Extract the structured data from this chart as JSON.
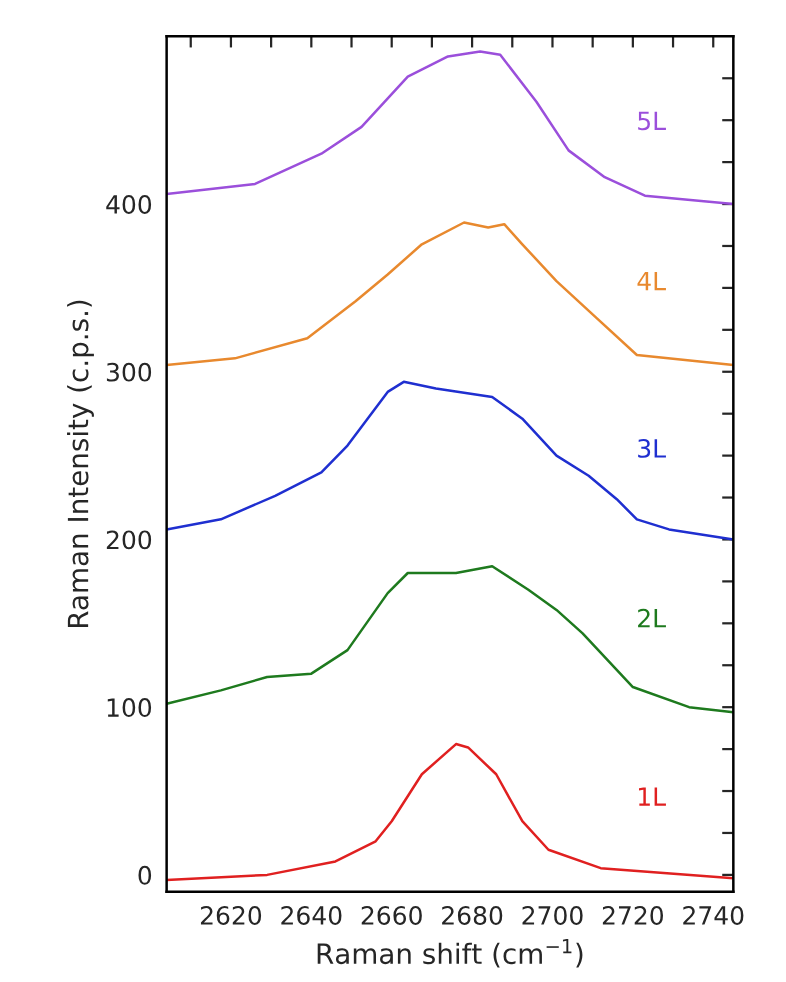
{
  "chart_data": {
    "type": "line",
    "xlabel": "Raman shift (cm$^{−1}$)",
    "ylabel": "Raman Intensity (c.p.s.)",
    "xlim": [
      2604,
      2745
    ],
    "ylim": [
      -10,
      500
    ],
    "xticks": [
      {
        "value": 2610,
        "label": null
      },
      2620,
      {
        "value": 2630,
        "label": null
      },
      2640,
      {
        "value": 2650,
        "label": null
      },
      2660,
      {
        "value": 2670,
        "label": null
      },
      2680,
      {
        "value": 2690,
        "label": null
      },
      2700,
      {
        "value": 2710,
        "label": null
      },
      2720,
      {
        "value": 2730,
        "label": null
      },
      2740
    ],
    "yticks": [
      0,
      {
        "value": 25,
        "label": null
      },
      {
        "value": 50,
        "label": null
      },
      {
        "value": 75,
        "label": null
      },
      100,
      {
        "value": 125,
        "label": null
      },
      {
        "value": 150,
        "label": null
      },
      {
        "value": 175,
        "label": null
      },
      200,
      {
        "value": 225,
        "label": null
      },
      {
        "value": 250,
        "label": null
      },
      {
        "value": 275,
        "label": null
      },
      300,
      {
        "value": 325,
        "label": null
      },
      {
        "value": 350,
        "label": null
      },
      {
        "value": 375,
        "label": null
      },
      400,
      {
        "value": 425,
        "label": null
      },
      {
        "value": 450,
        "label": null
      },
      {
        "value": 475,
        "label": null
      }
    ],
    "grid": false,
    "legend": false,
    "marker": "none",
    "line_style": "solid",
    "series": [
      {
        "name": "1L",
        "color": "#e02020",
        "x": [
          2604,
          2629,
          2646,
          2656,
          2660,
          2667.5,
          2676,
          2679,
          2686,
          2692.5,
          2699,
          2712,
          2745
        ],
        "values": [
          -3,
          0,
          8,
          20,
          32,
          60,
          78,
          76,
          60,
          32,
          15,
          4,
          -2
        ]
      },
      {
        "name": "2L",
        "color": "#1e7a1e",
        "x": [
          2604,
          2617.5,
          2629,
          2640,
          2649,
          2659,
          2664,
          2676,
          2685,
          2694,
          2701,
          2707.5,
          2720,
          2734,
          2745
        ],
        "values": [
          102,
          110,
          118,
          120,
          134,
          168,
          180,
          180,
          184,
          170,
          158,
          144,
          112,
          100,
          97
        ]
      },
      {
        "name": "3L",
        "color": "#1f2fd0",
        "x": [
          2604,
          2617.5,
          2631,
          2642.5,
          2649,
          2659,
          2663,
          2671,
          2685,
          2692.5,
          2701,
          2709,
          2716,
          2721,
          2729,
          2745
        ],
        "values": [
          206,
          212,
          226,
          240,
          256,
          288,
          294,
          290,
          285,
          272,
          250,
          238,
          224,
          212,
          206,
          200
        ]
      },
      {
        "name": "4L",
        "color": "#e8892e",
        "x": [
          2604,
          2621,
          2639,
          2651,
          2659,
          2667.5,
          2678,
          2684,
          2688,
          2692.5,
          2701,
          2711,
          2721,
          2745
        ],
        "values": [
          304,
          308,
          320,
          342,
          358,
          376,
          389,
          386,
          388,
          376,
          354,
          332,
          310,
          304
        ]
      },
      {
        "name": "5L",
        "color": "#9b4fdb",
        "x": [
          2604,
          2626,
          2642.5,
          2652.5,
          2664,
          2674,
          2682,
          2687,
          2696,
          2704,
          2713,
          2723,
          2745
        ],
        "values": [
          406,
          412,
          430,
          446,
          476,
          488,
          491,
          489,
          461,
          432,
          416,
          405,
          400
        ]
      }
    ]
  }
}
